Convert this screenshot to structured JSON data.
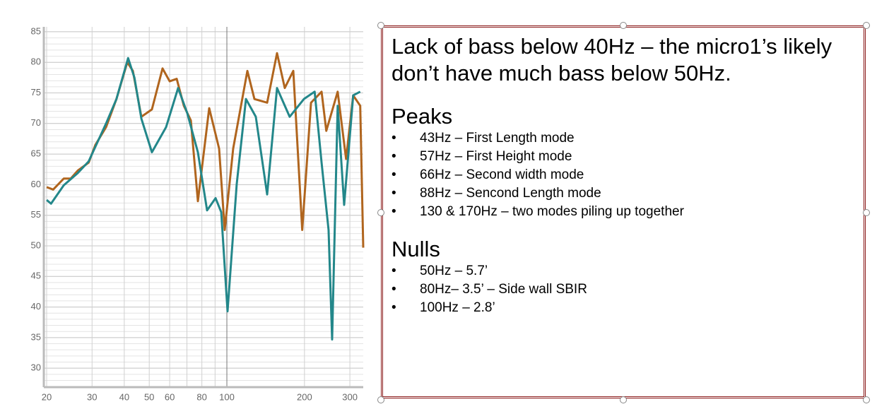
{
  "chart_data": {
    "type": "line",
    "xscale": "log",
    "xlim": [
      19.5,
      338
    ],
    "ylim": [
      26.9,
      85.8
    ],
    "xticks": [
      20,
      30,
      40,
      50,
      60,
      80,
      100,
      200,
      300
    ],
    "xminor": [
      70,
      90
    ],
    "yticks": [
      30,
      35,
      40,
      45,
      50,
      55,
      60,
      65,
      70,
      75,
      80,
      85
    ],
    "ygrid_step": 1,
    "grid": true,
    "series": [
      {
        "color": "#b0651e",
        "x": [
          20,
          21.2,
          23.3,
          24.8,
          26.4,
          29.1,
          30.9,
          34,
          37.3,
          41.1,
          43.2,
          46.6,
          51.2,
          56.3,
          60,
          63.9,
          68.1,
          72.5,
          77.2,
          85.4,
          93.3,
          98.1,
          105.8,
          120.1,
          127.9,
          143.3,
          156.5,
          167.7,
          181,
          196,
          212,
          233,
          243,
          269,
          290,
          309,
          329,
          338
        ],
        "values": [
          59.6,
          59.2,
          61,
          61,
          62.3,
          63.6,
          66.5,
          69.4,
          74,
          80,
          78.6,
          71.1,
          72.3,
          79,
          76.9,
          77.3,
          72.9,
          70.5,
          57.3,
          72.5,
          65.9,
          52.6,
          65.9,
          78.6,
          74,
          73.4,
          81.5,
          75.8,
          78.6,
          52.6,
          73.4,
          75.2,
          68.8,
          75.2,
          64.2,
          74.6,
          72.9,
          49.7
        ]
      },
      {
        "color": "#23878a",
        "x": [
          20,
          20.8,
          23.3,
          26.4,
          29.1,
          34,
          37.3,
          41.4,
          43.8,
          46.6,
          51.2,
          58.1,
          64.7,
          70.2,
          77.2,
          83.8,
          90.4,
          95.1,
          100.6,
          109.2,
          118.6,
          129.5,
          143.3,
          156.5,
          175.2,
          199,
          219,
          233,
          248,
          256,
          269,
          285,
          309,
          329
        ],
        "values": [
          57.5,
          56.9,
          59.9,
          61.9,
          63.8,
          70,
          74,
          80.7,
          77.5,
          70.8,
          65.3,
          69.4,
          75.8,
          71.7,
          65.3,
          55.8,
          57.8,
          55.5,
          39.3,
          60.1,
          74,
          71.1,
          58.4,
          75.8,
          71.1,
          74,
          75.2,
          63.6,
          52.6,
          34.7,
          72.9,
          56.7,
          74.6,
          75.2
        ]
      }
    ]
  },
  "text_box": {
    "heading": "Lack of bass below 40Hz – the micro1’s likely don’t have much bass below 50Hz.",
    "sections": [
      {
        "title": "Peaks",
        "items": [
          "43Hz – First Length mode",
          "57Hz – First Height mode",
          "66Hz – Second width mode",
          "88Hz – Sencond Length mode",
          "130 & 170Hz – two modes piling up together"
        ]
      },
      {
        "title": "Nulls",
        "items": [
          "50Hz – 5.7’",
          "80Hz– 3.5’ – Side wall SBIR",
          "100Hz – 2.8’"
        ]
      }
    ]
  }
}
